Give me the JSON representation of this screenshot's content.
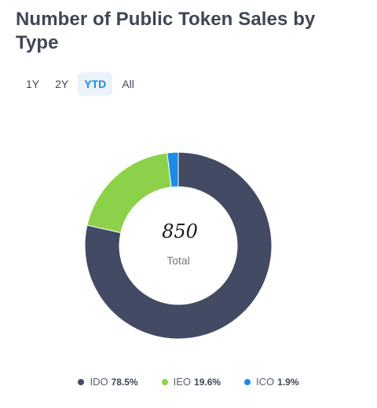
{
  "title": "Number of Public Token Sales by Type",
  "range_tabs": {
    "items": [
      {
        "label": "1Y"
      },
      {
        "label": "2Y"
      },
      {
        "label": "YTD"
      },
      {
        "label": "All"
      }
    ],
    "selected": "YTD"
  },
  "chart_data": {
    "type": "pie",
    "donut": true,
    "center_value": "850",
    "center_label": "Total",
    "slices": [
      {
        "name": "IDO",
        "value": 78.5,
        "label": "78.5%",
        "color": "#434a63"
      },
      {
        "name": "IEO",
        "value": 19.6,
        "label": "19.6%",
        "color": "#8dd14a"
      },
      {
        "name": "ICO",
        "value": 1.9,
        "label": "1.9%",
        "color": "#1a8ce6"
      }
    ],
    "legend_position": "bottom"
  }
}
